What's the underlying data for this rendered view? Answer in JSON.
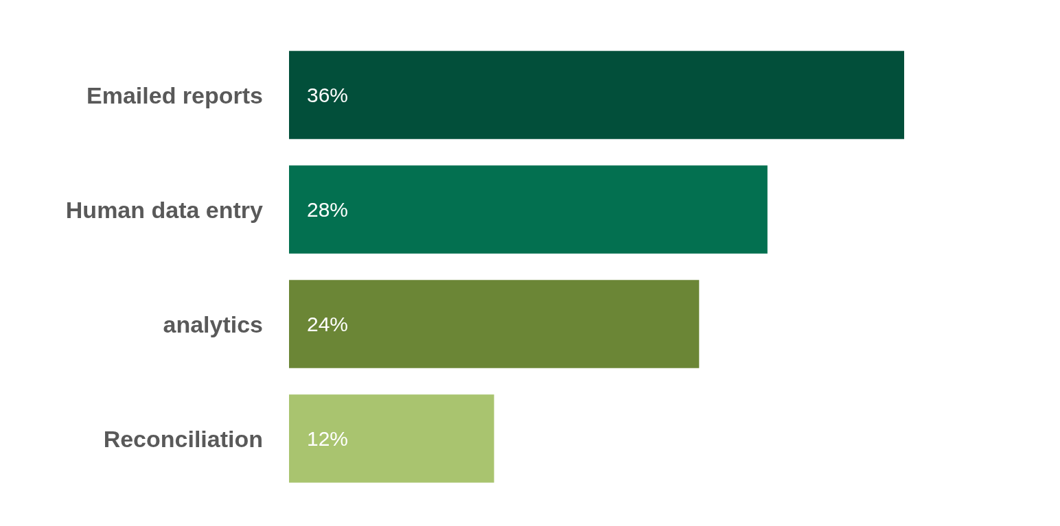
{
  "chart_data": {
    "type": "bar",
    "orientation": "horizontal",
    "categories": [
      "Emailed reports",
      "Human data entry",
      "analytics",
      "Reconciliation"
    ],
    "values": [
      36,
      28,
      24,
      12
    ],
    "colors": [
      "#024f3a",
      "#037050",
      "#6b8636",
      "#a9c46f"
    ],
    "value_labels": [
      "36%",
      "28%",
      "24%",
      "12%"
    ],
    "tick_labels": "y"
  }
}
